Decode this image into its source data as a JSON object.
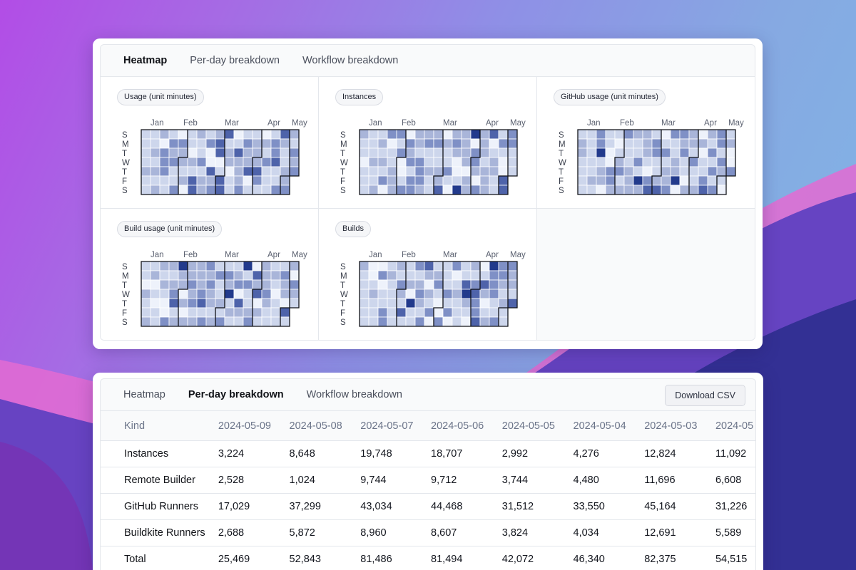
{
  "colors": {
    "shade0": "#eef2fb",
    "shade1": "#cdd6ec",
    "shade2": "#a9b5d9",
    "shade3": "#7f90c6",
    "shade4": "#4e63aa",
    "shade5": "#223a8c",
    "accent": "#111318"
  },
  "heatmap_card": {
    "tabs": [
      {
        "label": "Heatmap",
        "active": true
      },
      {
        "label": "Per-day breakdown",
        "active": false
      },
      {
        "label": "Workflow breakdown",
        "active": false
      }
    ],
    "months": [
      "Jan",
      "Feb",
      "Mar",
      "Apr",
      "May"
    ],
    "days": [
      "S",
      "M",
      "T",
      "W",
      "T",
      "F",
      "S"
    ],
    "panels": [
      {
        "title": "Usage (unit minutes)",
        "seed": 3
      },
      {
        "title": "Instances",
        "seed": 11
      },
      {
        "title": "GitHub usage (unit minutes)",
        "seed": 19
      },
      {
        "title": "Build usage (unit minutes)",
        "seed": 27
      },
      {
        "title": "Builds",
        "seed": 35
      }
    ]
  },
  "table_card": {
    "tabs": [
      {
        "label": "Heatmap",
        "active": false
      },
      {
        "label": "Per-day breakdown",
        "active": true
      },
      {
        "label": "Workflow breakdown",
        "active": false
      }
    ],
    "download_label": "Download CSV",
    "columns": [
      "Kind",
      "2024-05-09",
      "2024-05-08",
      "2024-05-07",
      "2024-05-06",
      "2024-05-05",
      "2024-05-04",
      "2024-05-03",
      "2024-05"
    ],
    "rows": [
      {
        "kind": "Instances",
        "values": [
          "3,224",
          "8,648",
          "19,748",
          "18,707",
          "2,992",
          "4,276",
          "12,824",
          "11,092"
        ]
      },
      {
        "kind": "Remote Builder",
        "values": [
          "2,528",
          "1,024",
          "9,744",
          "9,712",
          "3,744",
          "4,480",
          "11,696",
          "6,608"
        ]
      },
      {
        "kind": "GitHub Runners",
        "values": [
          "17,029",
          "37,299",
          "43,034",
          "44,468",
          "31,512",
          "33,550",
          "45,164",
          "31,226"
        ]
      },
      {
        "kind": "Buildkite Runners",
        "values": [
          "2,688",
          "5,872",
          "8,960",
          "8,607",
          "3,824",
          "4,034",
          "12,691",
          "5,589"
        ]
      },
      {
        "kind": "Total",
        "values": [
          "25,469",
          "52,843",
          "81,486",
          "81,494",
          "42,072",
          "46,340",
          "82,375",
          "54,515"
        ]
      }
    ]
  }
}
